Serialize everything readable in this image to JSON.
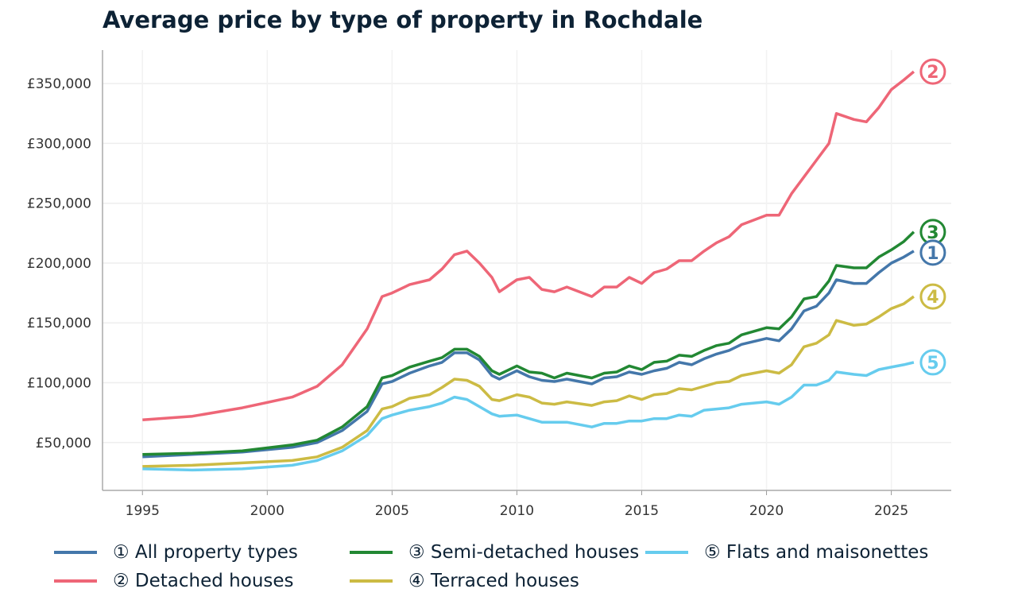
{
  "chart_data": {
    "type": "line",
    "title": "Average price by type of property in Rochdale",
    "xlabel": "",
    "ylabel": "",
    "xlim": [
      1993.4,
      2027.4
    ],
    "ylim": [
      10000,
      378000
    ],
    "x_ticks": [
      1995,
      2000,
      2005,
      2010,
      2015,
      2020,
      2025
    ],
    "x_tick_labels": [
      "1995",
      "2000",
      "2005",
      "2010",
      "2015",
      "2020",
      "2025"
    ],
    "y_ticks": [
      50000,
      100000,
      150000,
      200000,
      250000,
      300000,
      350000
    ],
    "y_tick_labels": [
      "£50,000",
      "£100,000",
      "£150,000",
      "£200,000",
      "£250,000",
      "£300,000",
      "£350,000"
    ],
    "grid": true,
    "legend_placement": "bottom",
    "x": [
      1995,
      1997,
      1999,
      2001,
      2002,
      2003,
      2004,
      2004.6,
      2005,
      2005.7,
      2006.5,
      2007,
      2007.5,
      2008,
      2008.5,
      2009,
      2009.3,
      2010,
      2010.5,
      2011,
      2011.5,
      2012,
      2013,
      2013.5,
      2014,
      2014.5,
      2015,
      2015.5,
      2016,
      2016.5,
      2017,
      2017.5,
      2018,
      2018.5,
      2019,
      2020,
      2020.5,
      2021,
      2021.5,
      2022,
      2022.5,
      2022.8,
      2023.5,
      2024,
      2024.5,
      2025,
      2025.5,
      2025.9
    ],
    "series": [
      {
        "name": "① All property types",
        "marker": "1",
        "color": "#4477AA",
        "values": [
          38000,
          40000,
          42000,
          46000,
          50000,
          60000,
          76000,
          99000,
          101000,
          108000,
          114000,
          117000,
          125000,
          125000,
          119000,
          106000,
          103000,
          110000,
          105000,
          102000,
          101000,
          103000,
          99000,
          104000,
          105000,
          109000,
          107000,
          110000,
          112000,
          117000,
          115000,
          120000,
          124000,
          127000,
          132000,
          137000,
          135000,
          145000,
          160000,
          164000,
          175000,
          186000,
          183000,
          183000,
          192000,
          200000,
          205000,
          210000
        ]
      },
      {
        "name": "② Detached houses",
        "marker": "2",
        "color": "#EE6677",
        "values": [
          69000,
          72000,
          79000,
          88000,
          97000,
          115000,
          145000,
          172000,
          175000,
          182000,
          186000,
          195000,
          207000,
          210000,
          200000,
          188000,
          176000,
          186000,
          188000,
          178000,
          176000,
          180000,
          172000,
          180000,
          180000,
          188000,
          183000,
          192000,
          195000,
          202000,
          202000,
          210000,
          217000,
          222000,
          232000,
          240000,
          240000,
          258000,
          272000,
          286000,
          300000,
          325000,
          320000,
          318000,
          330000,
          345000,
          353000,
          360000
        ]
      },
      {
        "name": "③ Semi-detached houses",
        "marker": "3",
        "color": "#228833",
        "values": [
          40000,
          41000,
          43000,
          48000,
          52000,
          63000,
          80000,
          104000,
          106000,
          113000,
          118000,
          121000,
          128000,
          128000,
          122000,
          110000,
          107000,
          114000,
          109000,
          108000,
          104000,
          108000,
          104000,
          108000,
          109000,
          114000,
          111000,
          117000,
          118000,
          123000,
          122000,
          127000,
          131000,
          133000,
          140000,
          146000,
          145000,
          155000,
          170000,
          172000,
          185000,
          198000,
          196000,
          196000,
          205000,
          211000,
          218000,
          226000
        ]
      },
      {
        "name": "④ Terraced houses",
        "marker": "4",
        "color": "#CCBB44",
        "values": [
          30000,
          31000,
          33000,
          35000,
          38000,
          46000,
          60000,
          78000,
          80000,
          87000,
          90000,
          96000,
          103000,
          102000,
          97000,
          86000,
          85000,
          90000,
          88000,
          83000,
          82000,
          84000,
          81000,
          84000,
          85000,
          89000,
          86000,
          90000,
          91000,
          95000,
          94000,
          97000,
          100000,
          101000,
          106000,
          110000,
          108000,
          115000,
          130000,
          133000,
          140000,
          152000,
          148000,
          149000,
          155000,
          162000,
          166000,
          172000
        ]
      },
      {
        "name": "⑤ Flats and maisonettes",
        "marker": "5",
        "color": "#66CCEE",
        "values": [
          28000,
          27000,
          28000,
          31000,
          35000,
          43000,
          56000,
          70000,
          73000,
          77000,
          80000,
          83000,
          88000,
          86000,
          80000,
          74000,
          72000,
          73000,
          70000,
          67000,
          67000,
          67000,
          63000,
          66000,
          66000,
          68000,
          68000,
          70000,
          70000,
          73000,
          72000,
          77000,
          78000,
          79000,
          82000,
          84000,
          82000,
          88000,
          98000,
          98000,
          102000,
          109000,
          107000,
          106000,
          111000,
          113000,
          115000,
          117000
        ]
      }
    ]
  }
}
